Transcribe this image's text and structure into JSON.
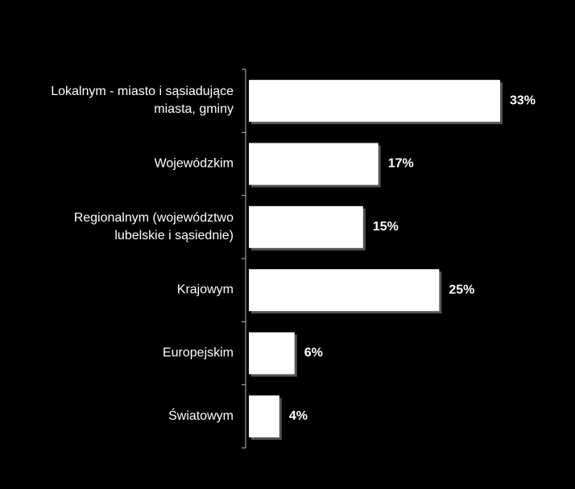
{
  "chart_data": {
    "type": "bar",
    "orientation": "horizontal",
    "categories": [
      "Lokalnym - miasto i sąsiadujące\nmiasta, gminy",
      "Wojewódzkim",
      "Regionalnym (województwo\nlubelskie i sąsiednie)",
      "Krajowym",
      "Europejskim",
      "Światowym"
    ],
    "values": [
      33,
      17,
      15,
      25,
      6,
      4
    ],
    "value_labels": [
      "33%",
      "17%",
      "15%",
      "25%",
      "6%",
      "4%"
    ],
    "color": "#ffffff",
    "background": "#000000"
  }
}
